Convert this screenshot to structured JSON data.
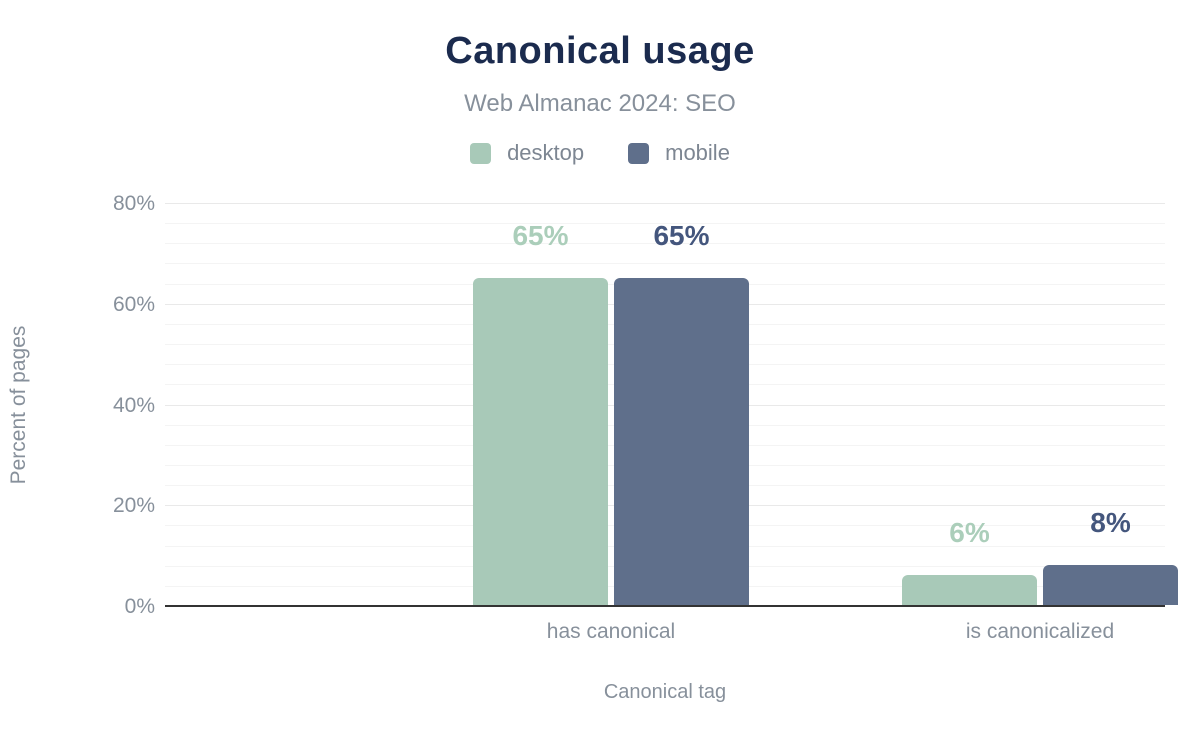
{
  "chart_data": {
    "type": "bar",
    "title": "Canonical usage",
    "subtitle": "Web Almanac 2024: SEO",
    "xlabel": "Canonical tag",
    "ylabel": "Percent of pages",
    "ylim": [
      0,
      80
    ],
    "grid": {
      "minor_step": 4,
      "major_step": 20
    },
    "legend_position": "top",
    "categories": [
      "has canonical",
      "is canonicalized"
    ],
    "yticks": [
      {
        "value": 0,
        "label": "0%"
      },
      {
        "value": 20,
        "label": "20%"
      },
      {
        "value": 40,
        "label": "40%"
      },
      {
        "value": 60,
        "label": "60%"
      },
      {
        "value": 80,
        "label": "80%"
      }
    ],
    "series": [
      {
        "name": "desktop",
        "color": "#a8c9b8",
        "label_color": "#abceba",
        "values": [
          65,
          6
        ],
        "labels": [
          "65%",
          "6%"
        ]
      },
      {
        "name": "mobile",
        "color": "#5f6f8b",
        "label_color": "#44567d",
        "values": [
          65,
          8
        ],
        "labels": [
          "65%",
          "8%"
        ]
      }
    ],
    "colors": {
      "title": "#1b2b4e",
      "muted_text": "#87909b",
      "baseline": "#333333"
    }
  }
}
